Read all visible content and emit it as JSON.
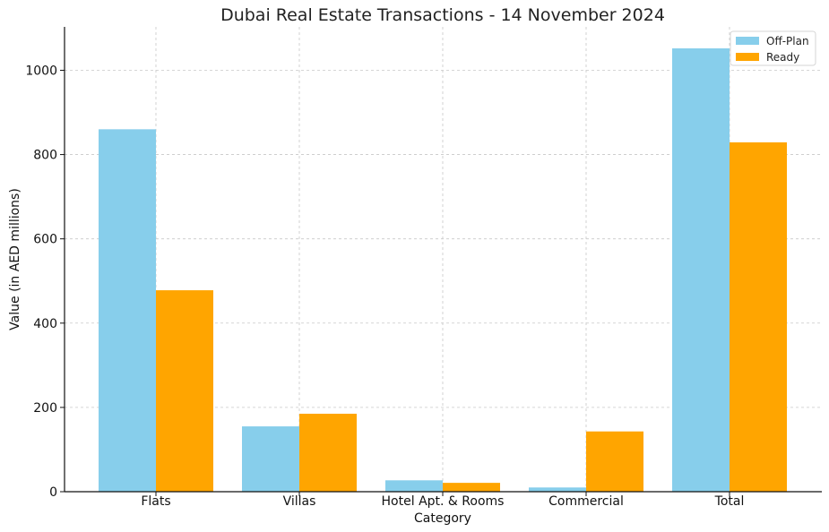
{
  "chart_data": {
    "type": "bar",
    "title": "Dubai Real Estate Transactions - 14 November 2024",
    "xlabel": "Category",
    "ylabel": "Value (in AED millions)",
    "categories": [
      "Flats",
      "Villas",
      "Hotel Apt. & Rooms",
      "Commercial",
      "Total"
    ],
    "series": [
      {
        "name": "Off-Plan",
        "color": "#87CEEB",
        "values": [
          860,
          155,
          27,
          10,
          1052
        ]
      },
      {
        "name": "Ready",
        "color": "#FFA500",
        "values": [
          478,
          185,
          21,
          143,
          829
        ]
      }
    ],
    "ylim": [
      0,
      1103
    ],
    "yticks": [
      0,
      200,
      400,
      600,
      800,
      1000
    ],
    "grid": true,
    "legend_position": "top-right"
  }
}
